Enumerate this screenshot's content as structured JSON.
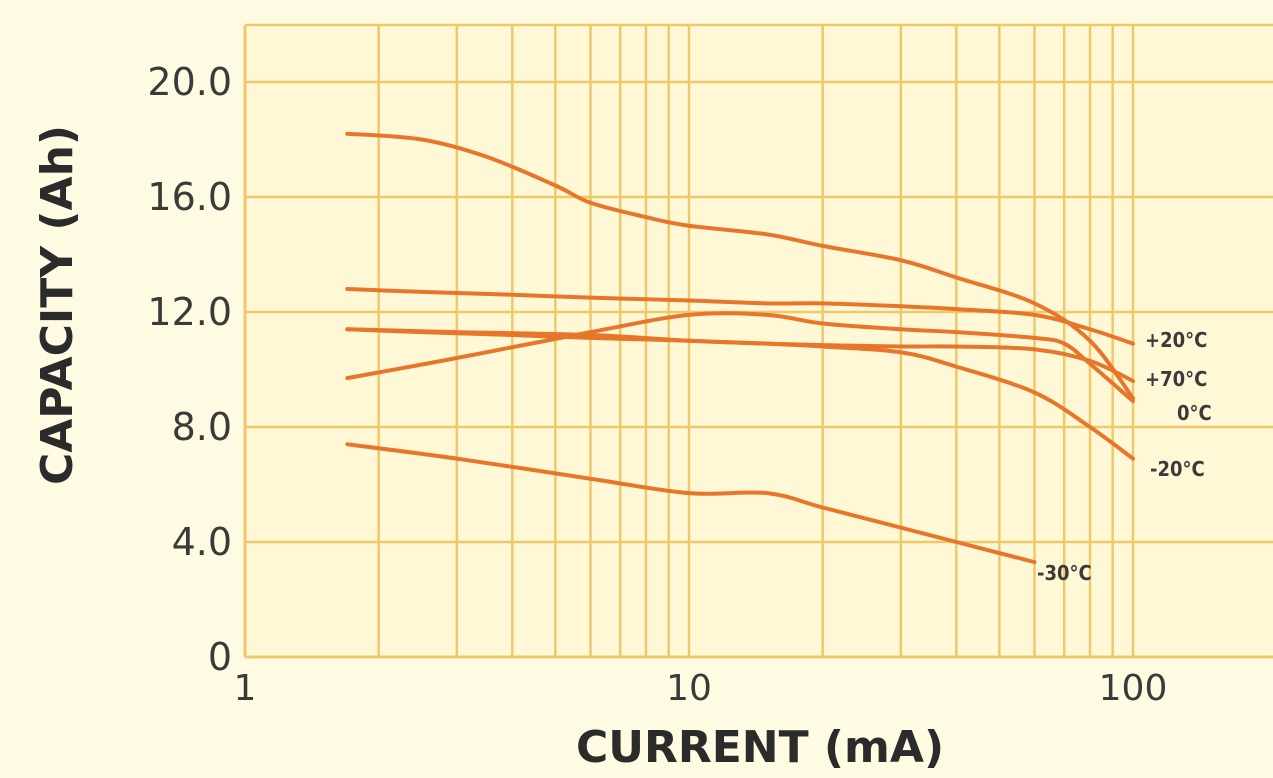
{
  "chart_data": {
    "type": "line",
    "xlabel": "CURRENT (mA)",
    "ylabel": "CAPACITY (Ah)",
    "x_scale": "log",
    "xlim": [
      1,
      200
    ],
    "ylim": [
      0,
      22
    ],
    "x_ticks": [
      "1",
      "10",
      "100"
    ],
    "y_ticks": [
      "0",
      "4.0",
      "8.0",
      "12.0",
      "16.0",
      "20.0"
    ],
    "grid": true,
    "legend": "inline labels at right end of each line",
    "colors": {
      "background": "#FFFBE3",
      "plot_background": "#FFF8D6",
      "grid": "#EFC86A",
      "line": "#E8762A",
      "text": "#3a3a3a"
    },
    "series": [
      {
        "name": "+20°C",
        "x": [
          1.7,
          2.5,
          4,
          6,
          10,
          15,
          20,
          30,
          40,
          60,
          80,
          100
        ],
        "y": [
          12.8,
          12.7,
          12.6,
          12.5,
          12.4,
          12.3,
          12.3,
          12.2,
          12.1,
          11.9,
          11.4,
          10.9
        ]
      },
      {
        "name": "+70°C",
        "x": [
          1.7,
          2.5,
          4,
          6,
          10,
          15,
          20,
          30,
          40,
          60,
          80,
          100
        ],
        "y": [
          11.4,
          11.3,
          11.2,
          11.1,
          11.0,
          10.9,
          10.85,
          10.8,
          10.8,
          10.7,
          10.3,
          9.6
        ]
      },
      {
        "name": "0°C",
        "x": [
          1.7,
          3,
          6,
          10,
          15,
          20,
          30,
          40,
          60,
          70,
          80,
          100
        ],
        "y": [
          9.7,
          10.4,
          11.3,
          11.9,
          11.9,
          11.6,
          11.4,
          11.3,
          11.1,
          10.9,
          10.2,
          8.9
        ]
      },
      {
        "name": "-20°C",
        "x": [
          1.7,
          3,
          6,
          10,
          15,
          20,
          30,
          40,
          60,
          80,
          100
        ],
        "y": [
          11.4,
          11.3,
          11.2,
          11.0,
          10.9,
          10.8,
          10.6,
          10.1,
          9.2,
          8.0,
          6.9
        ]
      },
      {
        "name": "-30°C",
        "x": [
          1.7,
          3,
          6,
          10,
          15,
          20,
          30,
          40,
          60
        ],
        "y": [
          7.4,
          6.9,
          6.2,
          5.7,
          5.7,
          5.2,
          4.5,
          4.0,
          3.3
        ]
      },
      {
        "name": "",
        "x": [
          1.7,
          2.5,
          3.5,
          5,
          6,
          8,
          10,
          15,
          20,
          30,
          40,
          60,
          80,
          100
        ],
        "y": [
          18.2,
          18.0,
          17.4,
          16.4,
          15.8,
          15.3,
          15.0,
          14.7,
          14.3,
          13.8,
          13.2,
          12.3,
          11.0,
          9.0
        ]
      }
    ]
  }
}
